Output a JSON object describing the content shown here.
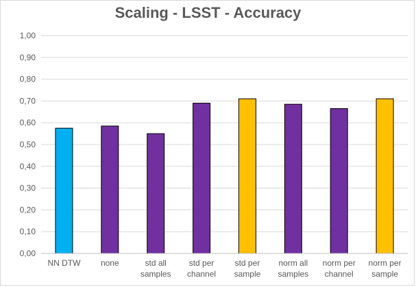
{
  "chart_data": {
    "type": "bar",
    "title": "Scaling - LSST - Accuracy",
    "categories": [
      [
        "NN DTW"
      ],
      [
        "none"
      ],
      [
        "std all",
        "samples"
      ],
      [
        "std per",
        "channel"
      ],
      [
        "std per",
        "sample"
      ],
      [
        "norm all",
        "samples"
      ],
      [
        "norm per",
        "channel"
      ],
      [
        "norm per",
        "sample"
      ]
    ],
    "values": [
      0.575,
      0.585,
      0.55,
      0.69,
      0.71,
      0.685,
      0.665,
      0.71
    ],
    "bar_colors": [
      "#00b0f0",
      "#7030a0",
      "#7030a0",
      "#7030a0",
      "#ffc000",
      "#7030a0",
      "#7030a0",
      "#ffc000"
    ],
    "ylim": [
      0,
      1
    ],
    "yticks": [
      "0,00",
      "0,10",
      "0,20",
      "0,30",
      "0,40",
      "0,50",
      "0,60",
      "0,70",
      "0,80",
      "0,90",
      "1,00"
    ],
    "xlabel": "",
    "ylabel": "",
    "grid": true,
    "legend": "none"
  }
}
